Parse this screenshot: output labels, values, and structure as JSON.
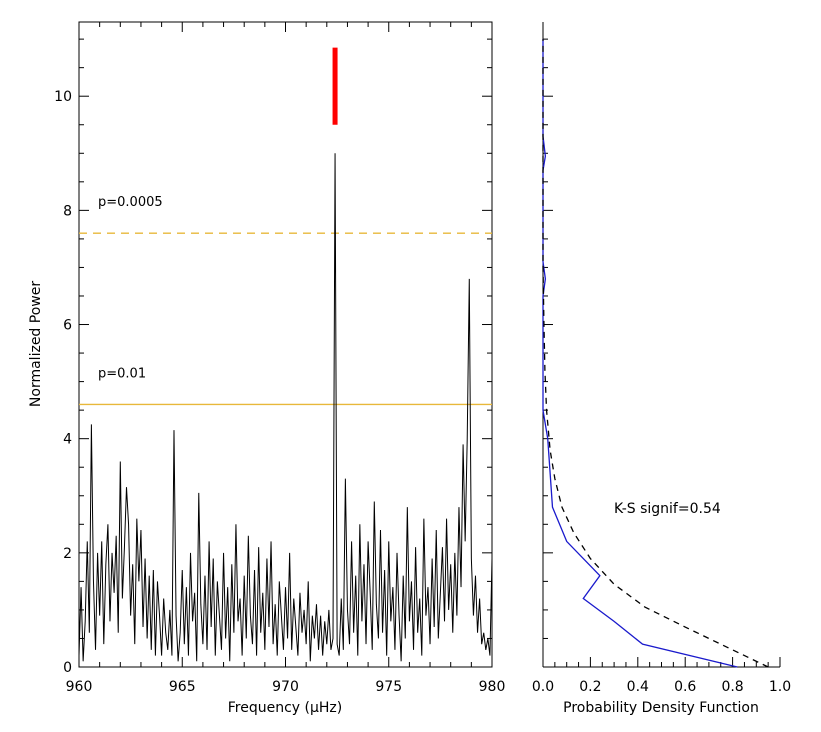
{
  "chart_data": [
    {
      "type": "line",
      "title": "",
      "xlabel": "Frequency (μHz)",
      "ylabel": "Normalized Power",
      "xlim": [
        960,
        980
      ],
      "ylim": [
        0,
        11.3
      ],
      "x_ticks": [
        960,
        965,
        970,
        975,
        980
      ],
      "y_ticks": [
        0,
        2,
        4,
        6,
        8,
        10
      ],
      "grid": false,
      "series": [
        {
          "color": "#000000",
          "points": [
            [
              960.0,
              0.2
            ],
            [
              960.1,
              1.4
            ],
            [
              960.2,
              0.1
            ],
            [
              960.3,
              0.8
            ],
            [
              960.4,
              2.2
            ],
            [
              960.5,
              0.6
            ],
            [
              960.6,
              4.25
            ],
            [
              960.7,
              1.5
            ],
            [
              960.8,
              0.3
            ],
            [
              960.9,
              2.0
            ],
            [
              961.0,
              0.9
            ],
            [
              961.1,
              2.2
            ],
            [
              961.2,
              0.4
            ],
            [
              961.3,
              1.8
            ],
            [
              961.4,
              2.5
            ],
            [
              961.5,
              0.8
            ],
            [
              961.6,
              2.0
            ],
            [
              961.7,
              1.3
            ],
            [
              961.8,
              2.3
            ],
            [
              961.9,
              0.6
            ],
            [
              962.0,
              3.6
            ],
            [
              962.1,
              1.2
            ],
            [
              962.2,
              2.1
            ],
            [
              962.3,
              3.15
            ],
            [
              962.4,
              2.5
            ],
            [
              962.5,
              0.9
            ],
            [
              962.6,
              1.8
            ],
            [
              962.7,
              0.4
            ],
            [
              962.8,
              2.6
            ],
            [
              962.9,
              1.5
            ],
            [
              963.0,
              2.4
            ],
            [
              963.1,
              0.7
            ],
            [
              963.2,
              1.9
            ],
            [
              963.3,
              0.5
            ],
            [
              963.4,
              1.6
            ],
            [
              963.5,
              0.3
            ],
            [
              963.6,
              1.7
            ],
            [
              963.7,
              0.2
            ],
            [
              963.8,
              1.5
            ],
            [
              963.9,
              0.9
            ],
            [
              964.0,
              0.2
            ],
            [
              964.1,
              1.2
            ],
            [
              964.2,
              0.6
            ],
            [
              964.3,
              0.3
            ],
            [
              964.4,
              1.0
            ],
            [
              964.5,
              0.2
            ],
            [
              964.6,
              4.15
            ],
            [
              964.7,
              0.9
            ],
            [
              964.8,
              0.1
            ],
            [
              964.9,
              0.6
            ],
            [
              965.0,
              1.7
            ],
            [
              965.1,
              0.4
            ],
            [
              965.2,
              1.4
            ],
            [
              965.3,
              0.2
            ],
            [
              965.4,
              2.0
            ],
            [
              965.5,
              0.8
            ],
            [
              965.6,
              1.3
            ],
            [
              965.7,
              0.1
            ],
            [
              965.8,
              3.05
            ],
            [
              965.9,
              1.1
            ],
            [
              966.0,
              0.4
            ],
            [
              966.1,
              1.6
            ],
            [
              966.2,
              0.3
            ],
            [
              966.3,
              2.2
            ],
            [
              966.4,
              0.7
            ],
            [
              966.5,
              1.9
            ],
            [
              966.6,
              0.2
            ],
            [
              966.7,
              1.5
            ],
            [
              966.8,
              0.9
            ],
            [
              966.9,
              0.3
            ],
            [
              967.0,
              2.0
            ],
            [
              967.1,
              0.5
            ],
            [
              967.2,
              1.4
            ],
            [
              967.3,
              0.1
            ],
            [
              967.4,
              1.8
            ],
            [
              967.5,
              0.6
            ],
            [
              967.6,
              2.5
            ],
            [
              967.7,
              0.8
            ],
            [
              967.8,
              1.2
            ],
            [
              967.9,
              0.2
            ],
            [
              968.0,
              1.6
            ],
            [
              968.1,
              0.5
            ],
            [
              968.2,
              2.3
            ],
            [
              968.3,
              0.9
            ],
            [
              968.4,
              0.4
            ],
            [
              968.5,
              1.7
            ],
            [
              968.6,
              0.2
            ],
            [
              968.7,
              2.1
            ],
            [
              968.8,
              0.6
            ],
            [
              968.9,
              1.3
            ],
            [
              969.0,
              0.3
            ],
            [
              969.1,
              1.9
            ],
            [
              969.2,
              0.7
            ],
            [
              969.3,
              2.2
            ],
            [
              969.4,
              0.4
            ],
            [
              969.5,
              1.1
            ],
            [
              969.6,
              0.2
            ],
            [
              969.7,
              1.5
            ],
            [
              969.8,
              0.9
            ],
            [
              969.9,
              0.3
            ],
            [
              970.0,
              1.4
            ],
            [
              970.1,
              0.5
            ],
            [
              970.2,
              2.0
            ],
            [
              970.3,
              0.3
            ],
            [
              970.4,
              1.2
            ],
            [
              970.5,
              0.7
            ],
            [
              970.6,
              0.2
            ],
            [
              970.7,
              1.3
            ],
            [
              970.8,
              0.6
            ],
            [
              970.9,
              1.0
            ],
            [
              971.0,
              0.4
            ],
            [
              971.1,
              1.5
            ],
            [
              971.2,
              0.1
            ],
            [
              971.3,
              0.9
            ],
            [
              971.4,
              0.5
            ],
            [
              971.5,
              1.1
            ],
            [
              971.6,
              0.3
            ],
            [
              971.7,
              0.9
            ],
            [
              971.8,
              0.2
            ],
            [
              971.9,
              0.8
            ],
            [
              972.0,
              0.4
            ],
            [
              972.1,
              1.0
            ],
            [
              972.2,
              0.3
            ],
            [
              972.3,
              0.5
            ],
            [
              972.4,
              9.0
            ],
            [
              972.5,
              0.4
            ],
            [
              972.6,
              0.2
            ],
            [
              972.7,
              1.2
            ],
            [
              972.8,
              0.3
            ],
            [
              972.9,
              3.3
            ],
            [
              973.0,
              1.0
            ],
            [
              973.1,
              0.4
            ],
            [
              973.2,
              2.2
            ],
            [
              973.3,
              0.6
            ],
            [
              973.4,
              1.6
            ],
            [
              973.5,
              0.2
            ],
            [
              973.6,
              2.5
            ],
            [
              973.7,
              0.8
            ],
            [
              973.8,
              1.8
            ],
            [
              973.9,
              0.4
            ],
            [
              974.0,
              2.2
            ],
            [
              974.1,
              1.3
            ],
            [
              974.2,
              0.3
            ],
            [
              974.3,
              2.9
            ],
            [
              974.4,
              1.1
            ],
            [
              974.5,
              0.5
            ],
            [
              974.6,
              2.4
            ],
            [
              974.7,
              0.6
            ],
            [
              974.8,
              1.7
            ],
            [
              974.9,
              0.2
            ],
            [
              975.0,
              2.2
            ],
            [
              975.1,
              0.8
            ],
            [
              975.2,
              1.4
            ],
            [
              975.3,
              0.3
            ],
            [
              975.4,
              2.0
            ],
            [
              975.5,
              0.9
            ],
            [
              975.6,
              0.1
            ],
            [
              975.7,
              1.6
            ],
            [
              975.8,
              0.5
            ],
            [
              975.9,
              2.8
            ],
            [
              976.0,
              0.8
            ],
            [
              976.1,
              1.5
            ],
            [
              976.2,
              0.3
            ],
            [
              976.3,
              2.1
            ],
            [
              976.4,
              0.6
            ],
            [
              976.5,
              1.2
            ],
            [
              976.6,
              0.2
            ],
            [
              976.7,
              2.6
            ],
            [
              976.8,
              0.9
            ],
            [
              976.9,
              1.4
            ],
            [
              977.0,
              0.4
            ],
            [
              977.1,
              1.9
            ],
            [
              977.2,
              0.7
            ],
            [
              977.3,
              2.4
            ],
            [
              977.4,
              0.5
            ],
            [
              977.5,
              1.3
            ],
            [
              977.6,
              2.1
            ],
            [
              977.7,
              0.8
            ],
            [
              977.8,
              2.6
            ],
            [
              977.9,
              1.0
            ],
            [
              978.0,
              1.8
            ],
            [
              978.1,
              0.6
            ],
            [
              978.2,
              2.0
            ],
            [
              978.3,
              0.9
            ],
            [
              978.4,
              2.8
            ],
            [
              978.5,
              1.4
            ],
            [
              978.6,
              3.9
            ],
            [
              978.7,
              2.2
            ],
            [
              978.8,
              4.0
            ],
            [
              978.9,
              6.8
            ],
            [
              979.0,
              1.9
            ],
            [
              979.1,
              0.9
            ],
            [
              979.2,
              1.6
            ],
            [
              979.3,
              0.6
            ],
            [
              979.4,
              1.2
            ],
            [
              979.5,
              0.4
            ],
            [
              979.6,
              0.6
            ],
            [
              979.7,
              0.3
            ],
            [
              979.8,
              0.5
            ],
            [
              979.9,
              0.2
            ],
            [
              980.0,
              1.9
            ]
          ]
        }
      ],
      "markers": {
        "detection_bar": {
          "x": 972.4,
          "y_range": [
            9.5,
            10.85
          ],
          "color": "#ff0000"
        },
        "thresholds": [
          {
            "label": "p=0.0005",
            "y": 7.6,
            "style": "dashed",
            "color": "#e8b83a"
          },
          {
            "label": "p=0.01",
            "y": 4.6,
            "style": "solid",
            "color": "#e8b83a"
          }
        ]
      }
    },
    {
      "type": "line",
      "title": "",
      "xlabel": "Probability Density Function",
      "ylabel": "",
      "xlim": [
        0.0,
        1.0
      ],
      "ylim": [
        0,
        11.3
      ],
      "x_ticks": [
        0.0,
        0.2,
        0.4,
        0.6,
        0.8,
        1.0
      ],
      "x_tick_labels": [
        "0.0",
        "0.2",
        "0.4",
        "0.6",
        "0.8",
        "1.0"
      ],
      "annotation": "K-S signif=0.54",
      "grid": false,
      "series": [
        {
          "style": "solid",
          "color": "#1a1acc",
          "points": [
            [
              0.82,
              0.0
            ],
            [
              0.42,
              0.4
            ],
            [
              0.3,
              0.8
            ],
            [
              0.17,
              1.2
            ],
            [
              0.24,
              1.6
            ],
            [
              0.1,
              2.2
            ],
            [
              0.04,
              2.8
            ],
            [
              0.03,
              3.4
            ],
            [
              0.02,
              4.0
            ],
            [
              0.0,
              4.5
            ],
            [
              0.0,
              6.5
            ],
            [
              0.01,
              6.8
            ],
            [
              0.0,
              7.1
            ],
            [
              0.0,
              8.7
            ],
            [
              0.01,
              8.95
            ],
            [
              0.0,
              9.3
            ],
            [
              0.0,
              11.0
            ]
          ]
        },
        {
          "style": "dashed",
          "color": "#000000",
          "points": [
            [
              0.95,
              0.0
            ],
            [
              0.8,
              0.3
            ],
            [
              0.6,
              0.7
            ],
            [
              0.43,
              1.05
            ],
            [
              0.3,
              1.45
            ],
            [
              0.2,
              1.9
            ],
            [
              0.13,
              2.35
            ],
            [
              0.08,
              2.8
            ],
            [
              0.05,
              3.3
            ],
            [
              0.03,
              3.8
            ],
            [
              0.015,
              4.5
            ],
            [
              0.008,
              5.2
            ],
            [
              0.004,
              6.0
            ],
            [
              0.0,
              7.0
            ],
            [
              0.0,
              11.0
            ]
          ]
        }
      ]
    }
  ]
}
